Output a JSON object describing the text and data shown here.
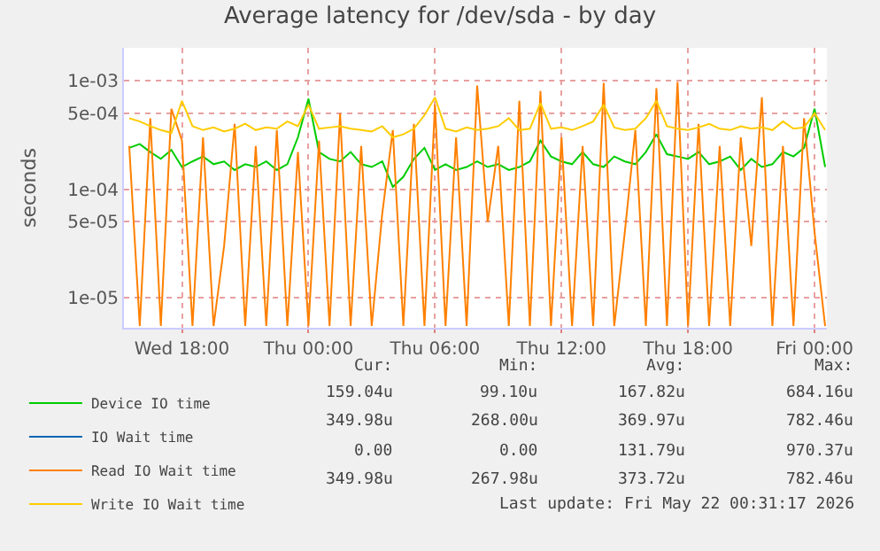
{
  "chart_data": {
    "type": "line",
    "title": "Average latency for /dev/sda - by day",
    "ylabel": "seconds",
    "log": "y",
    "grid": true,
    "legend": "bottom left",
    "marker": "none",
    "line_style": "solid",
    "x": [
      "2026-05-20T15:30",
      "2026-05-20T16:00",
      "2026-05-20T16:30",
      "2026-05-20T17:00",
      "2026-05-20T17:30",
      "2026-05-20T18:00",
      "2026-05-20T18:30",
      "2026-05-20T19:00",
      "2026-05-20T19:30",
      "2026-05-20T20:00",
      "2026-05-20T20:30",
      "2026-05-20T21:00",
      "2026-05-20T21:30",
      "2026-05-20T22:00",
      "2026-05-20T22:30",
      "2026-05-20T23:00",
      "2026-05-20T23:30",
      "2026-05-21T00:00",
      "2026-05-21T00:30",
      "2026-05-21T01:00",
      "2026-05-21T01:30",
      "2026-05-21T02:00",
      "2026-05-21T02:30",
      "2026-05-21T03:00",
      "2026-05-21T03:30",
      "2026-05-21T04:00",
      "2026-05-21T04:30",
      "2026-05-21T05:00",
      "2026-05-21T05:30",
      "2026-05-21T06:00",
      "2026-05-21T06:30",
      "2026-05-21T07:00",
      "2026-05-21T07:30",
      "2026-05-21T08:00",
      "2026-05-21T08:30",
      "2026-05-21T09:00",
      "2026-05-21T09:30",
      "2026-05-21T10:00",
      "2026-05-21T10:30",
      "2026-05-21T11:00",
      "2026-05-21T11:30",
      "2026-05-21T12:00",
      "2026-05-21T12:30",
      "2026-05-21T13:00",
      "2026-05-21T13:30",
      "2026-05-21T14:00",
      "2026-05-21T14:30",
      "2026-05-21T15:00",
      "2026-05-21T15:30",
      "2026-05-21T16:00",
      "2026-05-21T16:30",
      "2026-05-21T17:00",
      "2026-05-21T17:30",
      "2026-05-21T18:00",
      "2026-05-21T18:30",
      "2026-05-21T19:00",
      "2026-05-21T19:30",
      "2026-05-21T20:00",
      "2026-05-21T20:30",
      "2026-05-21T21:00",
      "2026-05-21T21:30",
      "2026-05-21T22:00",
      "2026-05-21T22:30",
      "2026-05-21T23:00",
      "2026-05-21T23:30",
      "2026-05-22T00:00",
      "2026-05-22T00:30"
    ],
    "xlim": [
      "2026-05-20T15:15",
      "2026-05-22T00:35"
    ],
    "xticks": [
      {
        "value": "2026-05-20T18:00",
        "label": "Wed 18:00"
      },
      {
        "value": "2026-05-21T00:00",
        "label": "Thu 00:00"
      },
      {
        "value": "2026-05-21T06:00",
        "label": "Thu 06:00"
      },
      {
        "value": "2026-05-21T12:00",
        "label": "Thu 12:00"
      },
      {
        "value": "2026-05-21T18:00",
        "label": "Thu 18:00"
      },
      {
        "value": "2026-05-22T00:00",
        "label": "Fri 00:00"
      }
    ],
    "ylim": [
      5.3e-06,
      0.002
    ],
    "yticks": [
      {
        "value": 1e-05,
        "label": "1e-05"
      },
      {
        "value": 5e-05,
        "label": "5e-05"
      },
      {
        "value": 0.0001,
        "label": "1e-04"
      },
      {
        "value": 0.0005,
        "label": "5e-04"
      },
      {
        "value": 0.001,
        "label": "1e-03"
      }
    ],
    "series": [
      {
        "name": "Device IO time",
        "color": "#00cc00",
        "values": [
          0.00024,
          0.00026,
          0.00022,
          0.00019,
          0.00023,
          0.00016,
          0.00018,
          0.0002,
          0.00017,
          0.00018,
          0.00015,
          0.00017,
          0.00016,
          0.00018,
          0.00015,
          0.00017,
          0.0003,
          0.00068,
          0.00022,
          0.00019,
          0.00018,
          0.00022,
          0.00017,
          0.00016,
          0.00018,
          0.000105,
          0.00013,
          0.00019,
          0.00024,
          0.00015,
          0.00017,
          0.00015,
          0.00016,
          0.00018,
          0.00016,
          0.00017,
          0.00015,
          0.00016,
          0.00018,
          0.00028,
          0.0002,
          0.00018,
          0.00017,
          0.00022,
          0.00017,
          0.00016,
          0.0002,
          0.00018,
          0.00017,
          0.00022,
          0.00032,
          0.00021,
          0.0002,
          0.00019,
          0.00022,
          0.00017,
          0.00018,
          0.0002,
          0.00015,
          0.00019,
          0.00016,
          0.00017,
          0.00022,
          0.0002,
          0.00024,
          0.00055,
          0.00016
        ]
      },
      {
        "name": "IO Wait time",
        "color": "#0066b3",
        "values": [
          null,
          null,
          null,
          null,
          null,
          null,
          null,
          null,
          null,
          null,
          null,
          null,
          null,
          null,
          null,
          null,
          null,
          null,
          null,
          null,
          null,
          null,
          null,
          null,
          null,
          null,
          null,
          null,
          null,
          null,
          null,
          null,
          null,
          null,
          null,
          null,
          null,
          null,
          null,
          null,
          null,
          null,
          null,
          null,
          null,
          null,
          null,
          null,
          null,
          null,
          null,
          null,
          null,
          null,
          null,
          null,
          null,
          null,
          null,
          null,
          null,
          null,
          null,
          null,
          null,
          null,
          null
        ]
      },
      {
        "name": "Read IO Wait time",
        "color": "#ff8000",
        "values": [
          0.00025,
          5.5e-06,
          0.00045,
          5.5e-06,
          0.00055,
          0.00028,
          5.5e-06,
          0.0003,
          5.5e-06,
          3e-05,
          0.0004,
          5.5e-06,
          0.00025,
          5.5e-06,
          0.00035,
          5.5e-06,
          0.00022,
          5.5e-06,
          0.00028,
          5.5e-06,
          0.0005,
          5.5e-06,
          0.00025,
          5.5e-06,
          6e-05,
          0.00035,
          5.5e-06,
          0.0004,
          5.5e-06,
          0.0006,
          5.5e-06,
          0.0003,
          5.5e-06,
          0.0009,
          5e-05,
          0.00025,
          5.5e-06,
          0.00065,
          5.5e-06,
          0.0008,
          5.5e-06,
          0.0003,
          5.5e-06,
          0.00025,
          5.5e-06,
          0.00095,
          5.5e-06,
          4e-05,
          0.00035,
          5.5e-06,
          0.00085,
          5.5e-06,
          0.00097,
          5.5e-06,
          0.0004,
          5.5e-06,
          0.00025,
          5.5e-06,
          0.0003,
          3e-05,
          0.0007,
          5.5e-06,
          0.00025,
          5.5e-06,
          0.00045,
          4e-05,
          5.5e-06
        ]
      },
      {
        "name": "Write IO Wait time",
        "color": "#ffcc00",
        "values": [
          0.00045,
          0.00042,
          0.00038,
          0.00035,
          0.00033,
          0.00065,
          0.00038,
          0.00035,
          0.00037,
          0.00034,
          0.00036,
          0.0004,
          0.00035,
          0.00037,
          0.00036,
          0.00042,
          0.00038,
          0.0006,
          0.00036,
          0.00037,
          0.00038,
          0.00036,
          0.00035,
          0.00034,
          0.00038,
          0.0003,
          0.00032,
          0.00036,
          0.00048,
          0.0007,
          0.00036,
          0.00034,
          0.00037,
          0.00035,
          0.00036,
          0.00038,
          0.00045,
          0.00035,
          0.00036,
          0.00062,
          0.00036,
          0.00037,
          0.00035,
          0.00038,
          0.00042,
          0.0006,
          0.00037,
          0.00035,
          0.00036,
          0.00045,
          0.00065,
          0.00038,
          0.00036,
          0.00035,
          0.00037,
          0.0004,
          0.00036,
          0.00035,
          0.00038,
          0.00036,
          0.00037,
          0.00035,
          0.00042,
          0.00036,
          0.00037,
          0.0005,
          0.00035
        ]
      }
    ],
    "annotations": [
      "Cur:",
      "Min:",
      "Avg:",
      "Max:",
      "159.04u",
      "99.10u",
      "167.82u",
      "684.16u",
      "349.98u",
      "268.00u",
      "369.97u",
      "782.46u",
      "0.00",
      "0.00",
      "131.79u",
      "970.37u",
      "349.98u",
      "267.98u",
      "373.72u",
      "782.46u",
      "Last update: Fri May 22 00:31:17 2026"
    ]
  }
}
